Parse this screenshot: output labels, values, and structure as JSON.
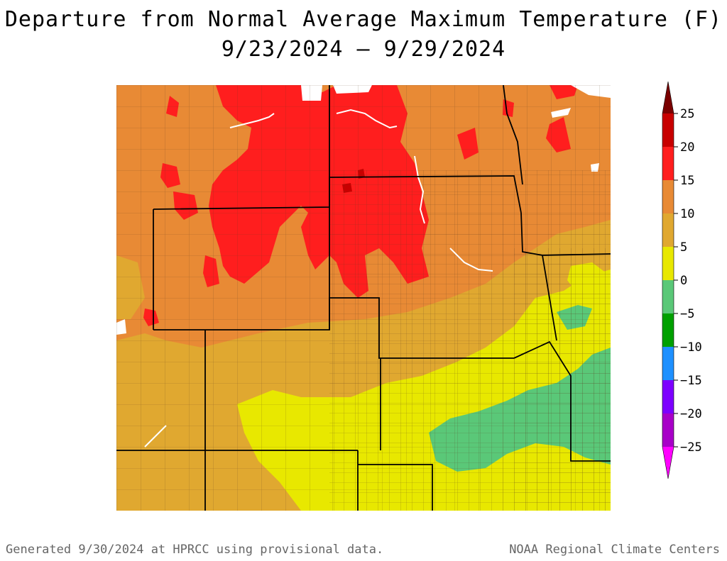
{
  "title": {
    "line1": "Departure from Normal Average Maximum Temperature (F)",
    "line2": "9/23/2024 – 9/29/2024"
  },
  "legend": {
    "ticks": [
      "25",
      "20",
      "15",
      "10",
      "5",
      "0",
      "−5",
      "−10",
      "−15",
      "−20",
      "−25"
    ],
    "colors": [
      "#ff00ff",
      "#a800c8",
      "#7d00ff",
      "#00a0ff",
      "#1e90ff",
      "#00a000",
      "#5ac878",
      "#e8e800",
      "#e0a830",
      "#e88a35",
      "#ff1e1e",
      "#c80000",
      "#7a0000"
    ]
  },
  "map": {
    "colors": {
      "red": "#ff1e1e",
      "dark_red": "#c80000",
      "orange": "#e88a35",
      "tan": "#e0a830",
      "yellow": "#e8e800",
      "green": "#5ac878",
      "dark_green": "#00a000",
      "white": "#ffffff"
    }
  },
  "footer": {
    "left": "Generated 9/30/2024 at HPRCC using provisional data.",
    "right": "NOAA Regional Climate Centers"
  }
}
